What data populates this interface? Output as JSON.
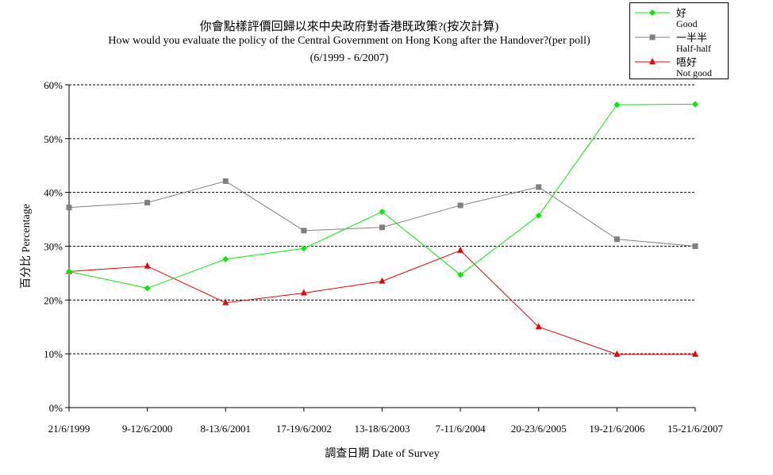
{
  "chart_data": {
    "type": "line",
    "title_zh": "你會點樣評價回歸以來中央政府對香港既政策?(按次計算)",
    "title_en": "How would you evaluate the policy of the Central Government on Hong Kong after the Handover?(per poll)",
    "period": "(6/1999 - 6/2007)",
    "xlabel": "調查日期 Date of Survey",
    "ylabel": "百分比 Percentage",
    "categories": [
      "21/6/1999",
      "9-12/6/2000",
      "8-13/6/2001",
      "17-19/6/2002",
      "13-18/6/2003",
      "7-11/6/2004",
      "20-23/6/2005",
      "19-21/6/2006",
      "15-21/6/2007"
    ],
    "yticks": [
      "0%",
      "10%",
      "20%",
      "30%",
      "40%",
      "50%",
      "60%"
    ],
    "ylim": [
      0,
      60
    ],
    "grid": true,
    "legend_position": "top-right",
    "series": [
      {
        "name_zh": "好",
        "name_en": "Good",
        "color": "#00ee00",
        "marker": "diamond",
        "values": [
          25.3,
          22.2,
          27.6,
          29.6,
          36.4,
          24.7,
          35.7,
          56.3,
          56.4
        ]
      },
      {
        "name_zh": "一半半",
        "name_en": "Half-half",
        "color": "#808080",
        "marker": "square",
        "values": [
          37.2,
          38.1,
          42.1,
          32.9,
          33.5,
          37.6,
          41.0,
          31.3,
          30.0
        ]
      },
      {
        "name_zh": "唔好",
        "name_en": "Not good",
        "color": "#ee0000",
        "marker": "triangle",
        "values": [
          25.3,
          26.3,
          19.5,
          21.3,
          23.5,
          29.2,
          15.0,
          9.9,
          9.9
        ]
      }
    ]
  }
}
